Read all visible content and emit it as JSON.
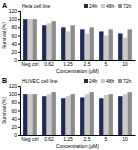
{
  "chart_data": [
    {
      "type": "bar",
      "title": "Hela cell line",
      "annotations": [
        "A"
      ],
      "x_label": "Concentration (μM)",
      "y_label": "Survival (%)",
      "categories": [
        "Neg ctrl",
        "0.62",
        "1.25",
        "2.5",
        "5",
        "10"
      ],
      "series": [
        {
          "name": "24h",
          "color": "#1f2a5c",
          "values": [
            100,
            85,
            80,
            75,
            70,
            65
          ]
        },
        {
          "name": "48h",
          "color": "#c8c8c8",
          "values": [
            100,
            90,
            70,
            65,
            60,
            55
          ]
        },
        {
          "name": "72h",
          "color": "#8c8c8c",
          "values": [
            100,
            95,
            85,
            80,
            75,
            75
          ]
        }
      ],
      "ylim": [
        0,
        120
      ],
      "yticks": [
        0,
        20,
        40,
        60,
        80,
        100,
        120
      ],
      "legend": "top"
    },
    {
      "type": "bar",
      "title": "HUVEC cell line",
      "annotations": [
        "B"
      ],
      "x_label": "Concentration (μM)",
      "y_label": "Survival (%)",
      "categories": [
        "Neg ctrl",
        "0.62",
        "1.25",
        "2.5",
        "5",
        "10"
      ],
      "series": [
        {
          "name": "24h",
          "color": "#1f2a5c",
          "values": [
            100,
            95,
            90,
            92,
            90,
            95
          ]
        },
        {
          "name": "48h",
          "color": "#c8c8c8",
          "values": [
            100,
            100,
            95,
            100,
            98,
            100
          ]
        },
        {
          "name": "72h",
          "color": "#8c8c8c",
          "values": [
            100,
            105,
            100,
            105,
            100,
            105
          ]
        }
      ],
      "ylim": [
        0,
        120
      ],
      "yticks": [
        0,
        20,
        40,
        60,
        80,
        100,
        120
      ],
      "legend": "top"
    }
  ]
}
